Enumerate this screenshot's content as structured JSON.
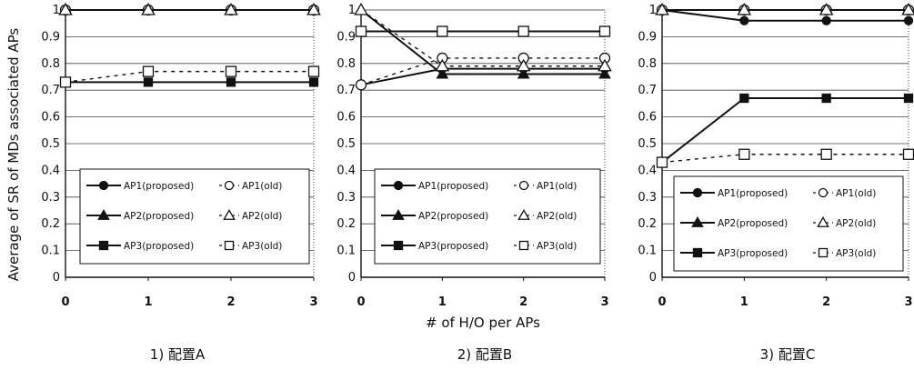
{
  "figure": {
    "ylabel": "Average of SR of MDs associated APs",
    "xlabel": "# of H/O per APs"
  },
  "legend": {
    "entries": [
      {
        "label": "AP1(proposed)",
        "marker": "circle",
        "filled": true
      },
      {
        "label": "AP1(old)",
        "marker": "circle",
        "filled": false
      },
      {
        "label": "AP2(proposed)",
        "marker": "triangle",
        "filled": true
      },
      {
        "label": "AP2(old)",
        "marker": "triangle",
        "filled": false
      },
      {
        "label": "AP3(proposed)",
        "marker": "square",
        "filled": true
      },
      {
        "label": "AP3(old)",
        "marker": "square",
        "filled": false
      }
    ]
  },
  "colors": {
    "line": "#111111",
    "grid": "#444444",
    "background": "#ffffff"
  },
  "chart_data": [
    {
      "type": "line",
      "caption": "1) 配置A",
      "x": [
        0,
        1,
        2,
        3
      ],
      "x_ticks": [
        "0",
        "1",
        "2",
        "3"
      ],
      "ylim": [
        0,
        1
      ],
      "y_ticks": [
        "0",
        "0.1",
        "0.2",
        "0.3",
        "0.4",
        "0.5",
        "0.6",
        "0.7",
        "0.8",
        "0.9",
        "1"
      ],
      "grid": "horizontal",
      "legend_position": "bottom",
      "series": [
        {
          "name": "AP1(proposed)",
          "values": [
            1,
            1,
            1,
            1
          ]
        },
        {
          "name": "AP1(old)",
          "values": [
            1,
            1,
            1,
            1
          ]
        },
        {
          "name": "AP2(proposed)",
          "values": [
            1,
            1,
            1,
            1
          ]
        },
        {
          "name": "AP2(old)",
          "values": [
            1,
            1,
            1,
            1
          ]
        },
        {
          "name": "AP3(proposed)",
          "values": [
            0.73,
            0.73,
            0.73,
            0.73
          ]
        },
        {
          "name": "AP3(old)",
          "values": [
            0.73,
            0.77,
            0.77,
            0.77
          ]
        }
      ]
    },
    {
      "type": "line",
      "caption": "2) 配置B",
      "x": [
        0,
        1,
        2,
        3
      ],
      "x_ticks": [
        "0",
        "1",
        "2",
        "3"
      ],
      "ylim": [
        0,
        1
      ],
      "y_ticks": [
        "0",
        "0.1",
        "0.2",
        "0.3",
        "0.4",
        "0.5",
        "0.6",
        "0.7",
        "0.8",
        "0.9",
        "1"
      ],
      "grid": "horizontal",
      "legend_position": "bottom",
      "series": [
        {
          "name": "AP1(proposed)",
          "values": [
            0.72,
            0.78,
            0.78,
            0.78
          ]
        },
        {
          "name": "AP1(old)",
          "values": [
            0.72,
            0.82,
            0.82,
            0.82
          ]
        },
        {
          "name": "AP2(proposed)",
          "values": [
            1,
            0.76,
            0.76,
            0.76
          ]
        },
        {
          "name": "AP2(old)",
          "values": [
            1,
            0.79,
            0.79,
            0.79
          ]
        },
        {
          "name": "AP3(proposed)",
          "values": [
            0.92,
            0.92,
            0.92,
            0.92
          ]
        },
        {
          "name": "AP3(old)",
          "values": [
            0.92,
            0.92,
            0.92,
            0.92
          ]
        }
      ]
    },
    {
      "type": "line",
      "caption": "3) 配置C",
      "x": [
        0,
        1,
        2,
        3
      ],
      "x_ticks": [
        "0",
        "1",
        "2",
        "3"
      ],
      "ylim": [
        0,
        1
      ],
      "y_ticks": [
        "0",
        "0.1",
        "0.2",
        "0.3",
        "0.4",
        "0.5",
        "0.6",
        "0.7",
        "0.8",
        "0.9",
        "1"
      ],
      "grid": "horizontal",
      "legend_position": "bottom",
      "series": [
        {
          "name": "AP1(proposed)",
          "values": [
            1,
            0.96,
            0.96,
            0.96
          ]
        },
        {
          "name": "AP1(old)",
          "values": [
            1,
            1,
            1,
            1
          ]
        },
        {
          "name": "AP2(proposed)",
          "values": [
            1,
            1,
            1,
            1
          ]
        },
        {
          "name": "AP2(old)",
          "values": [
            1,
            1,
            1,
            1
          ]
        },
        {
          "name": "AP3(proposed)",
          "values": [
            0.43,
            0.67,
            0.67,
            0.67
          ]
        },
        {
          "name": "AP3(old)",
          "values": [
            0.43,
            0.46,
            0.46,
            0.46
          ]
        }
      ]
    }
  ]
}
